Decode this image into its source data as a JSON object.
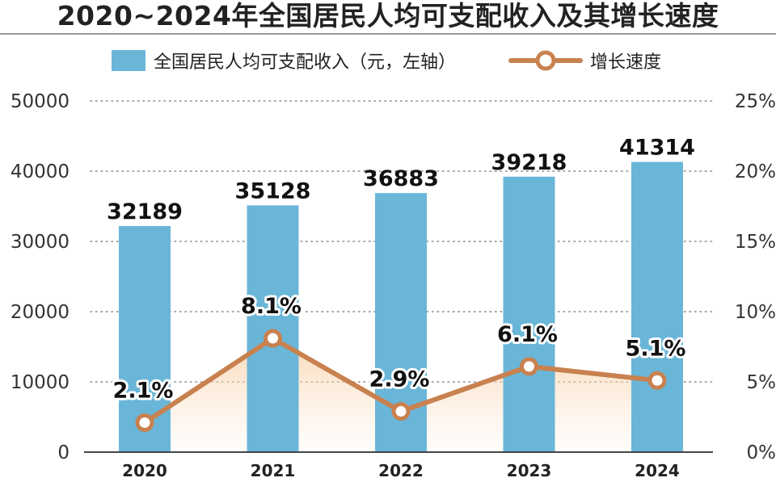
{
  "chart_data": {
    "type": "bar",
    "title": "2020~2024年全国居民人均可支配收入及其增长速度",
    "categories": [
      "2020",
      "2021",
      "2022",
      "2023",
      "2024"
    ],
    "series": [
      {
        "name": "全国居民人均可支配收入（元，左轴）",
        "type": "bar",
        "axis": "left",
        "values": [
          32189,
          35128,
          36883,
          39218,
          41314
        ],
        "labels": [
          "32189",
          "35128",
          "36883",
          "39218",
          "41314"
        ]
      },
      {
        "name": "增长速度",
        "type": "line",
        "axis": "right",
        "values": [
          2.1,
          8.1,
          2.9,
          6.1,
          5.1
        ],
        "labels": [
          "2.1%",
          "8.1%",
          "2.9%",
          "6.1%",
          "5.1%"
        ]
      }
    ],
    "y_left": {
      "ylim": [
        0,
        50000
      ],
      "ticks": [
        "0",
        "10000",
        "20000",
        "30000",
        "40000",
        "50000"
      ]
    },
    "y_right": {
      "ylim": [
        0,
        25
      ],
      "ticks": [
        "0%",
        "5%",
        "10%",
        "15%",
        "20%",
        "25%"
      ]
    },
    "grid": "dotted horizontal",
    "legend_placement": "top",
    "colors": {
      "bar": "#6ab6d8",
      "line": "#c8814f",
      "marker_fill": "#ffffff",
      "area_fill": "#f7c99a"
    }
  }
}
